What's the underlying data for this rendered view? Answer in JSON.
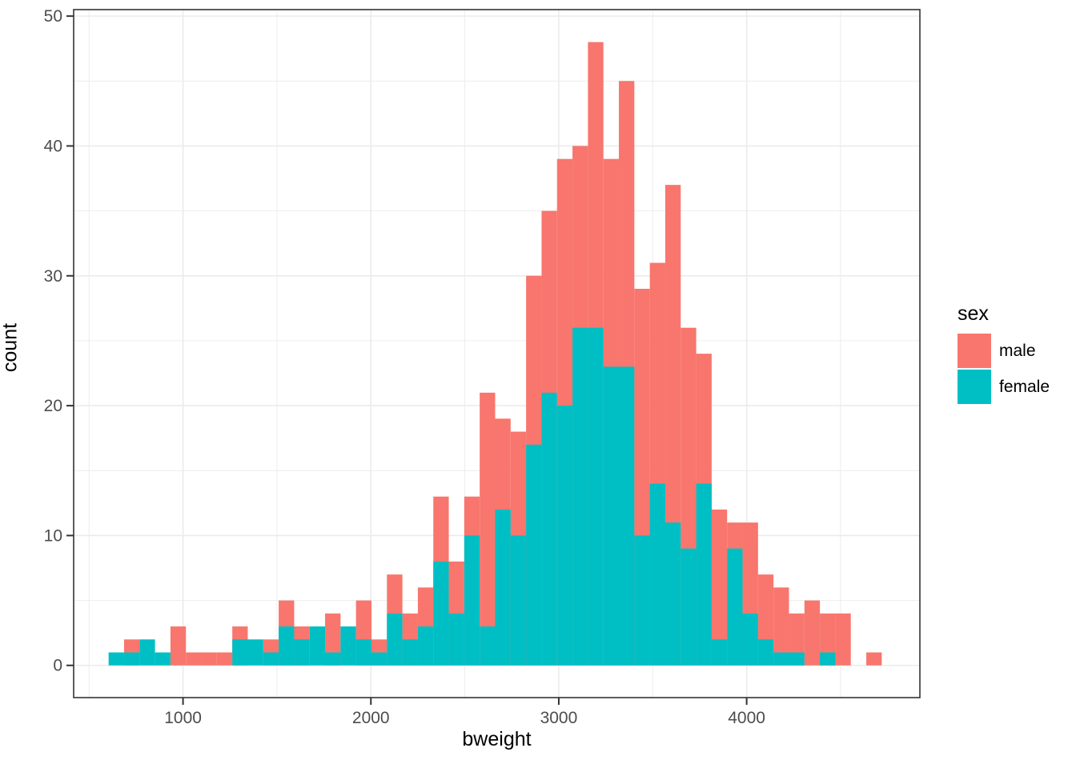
{
  "figure": {
    "background": "#ffffff"
  },
  "chart_data": {
    "type": "histogram",
    "position": "identity",
    "title": "",
    "xlabel": "bweight",
    "ylabel": "count",
    "x_ticks": [
      1000,
      2000,
      3000,
      4000
    ],
    "x_minor_ticks": [
      500,
      1500,
      2500,
      3500,
      4500
    ],
    "y_ticks": [
      0,
      10,
      20,
      30,
      40,
      50
    ],
    "y_minor_ticks": [
      5,
      15,
      25,
      35,
      45
    ],
    "x_domain": [
      418,
      4922
    ],
    "y_domain": [
      -2.48,
      50.5
    ],
    "grid": "on",
    "legend_position": "right",
    "legend": {
      "title": "sex",
      "items": [
        {
          "label": "male",
          "color": "#F8766D"
        },
        {
          "label": "female",
          "color": "#00BFC4"
        }
      ]
    },
    "bins": {
      "start": 604,
      "width": 82.3
    },
    "series": [
      {
        "name": "male",
        "color": "#F8766D",
        "counts": [
          0,
          2,
          0,
          0,
          3,
          1,
          1,
          1,
          3,
          0,
          2,
          5,
          3,
          0,
          4,
          0,
          5,
          2,
          7,
          4,
          6,
          13,
          8,
          13,
          21,
          19,
          18,
          30,
          35,
          39,
          40,
          48,
          39,
          45,
          29,
          31,
          37,
          26,
          24,
          12,
          11,
          11,
          7,
          6,
          4,
          5,
          4,
          4,
          0,
          1
        ]
      },
      {
        "name": "female",
        "color": "#00BFC4",
        "counts": [
          1,
          1,
          2,
          1,
          0,
          0,
          0,
          0,
          2,
          2,
          1,
          3,
          2,
          3,
          1,
          3,
          2,
          1,
          4,
          2,
          3,
          8,
          4,
          10,
          3,
          12,
          10,
          17,
          21,
          20,
          26,
          26,
          23,
          23,
          10,
          14,
          11,
          9,
          14,
          2,
          9,
          4,
          2,
          1,
          1,
          0,
          1,
          0,
          0,
          0
        ]
      }
    ],
    "colors": {
      "panel_background": "#ffffff",
      "panel_border": "#333333",
      "gridline": "#EBEBEB",
      "tick_mark": "#333333",
      "tick_label": "#4D4D4D",
      "axis_title": "#000000"
    }
  }
}
